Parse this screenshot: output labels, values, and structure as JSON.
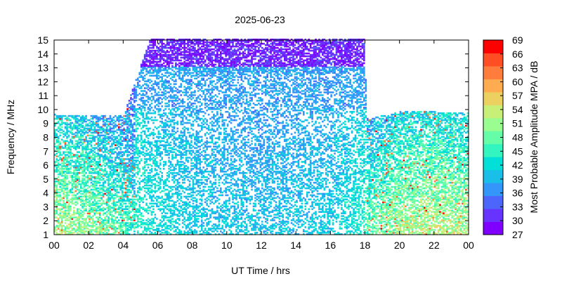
{
  "chart_data": {
    "type": "heatmap",
    "title": "2025-06-23",
    "xlabel": "UT Time / hrs",
    "ylabel": "Frequency / MHz",
    "colorbar_label": "Most Probable Amplitude MPA / dB",
    "xlim": [
      0,
      24
    ],
    "ylim": [
      1,
      15
    ],
    "x_ticks": [
      "00",
      "02",
      "04",
      "06",
      "08",
      "10",
      "12",
      "14",
      "16",
      "18",
      "20",
      "22",
      "00"
    ],
    "y_ticks": [
      "1",
      "2",
      "3",
      "4",
      "5",
      "6",
      "7",
      "8",
      "9",
      "10",
      "11",
      "12",
      "13",
      "14",
      "15"
    ],
    "colorbar_range": [
      27,
      69
    ],
    "colorbar_ticks": [
      "27",
      "30",
      "33",
      "36",
      "39",
      "42",
      "45",
      "48",
      "51",
      "54",
      "57",
      "60",
      "63",
      "66",
      "69"
    ],
    "colormap": [
      "#7f00ff",
      "#6633ff",
      "#4c66fc",
      "#3396f8",
      "#19bfe8",
      "#00e0d8",
      "#33f5c0",
      "#66fda8",
      "#99fd90",
      "#c8f078",
      "#ecd160",
      "#ffab50",
      "#ff7c3c",
      "#ff4d24",
      "#ff0000"
    ],
    "profile": [
      {
        "t": 0.0,
        "fmax": 9.6,
        "mpa_low_freq": 52
      },
      {
        "t": 2.0,
        "fmax": 9.5,
        "mpa_low_freq": 50
      },
      {
        "t": 4.0,
        "fmax": 9.6,
        "mpa_low_freq": 47
      },
      {
        "t": 5.5,
        "fmax": 15.0,
        "mpa_low_freq": 43
      },
      {
        "t": 8.0,
        "fmax": 15.0,
        "mpa_low_freq": 41
      },
      {
        "t": 12.0,
        "fmax": 15.0,
        "mpa_low_freq": 40
      },
      {
        "t": 16.0,
        "fmax": 15.0,
        "mpa_low_freq": 41
      },
      {
        "t": 17.9,
        "fmax": 15.0,
        "mpa_low_freq": 44
      },
      {
        "t": 18.1,
        "fmax": 9.3,
        "mpa_low_freq": 48
      },
      {
        "t": 20.0,
        "fmax": 9.8,
        "mpa_low_freq": 52
      },
      {
        "t": 22.0,
        "fmax": 9.8,
        "mpa_low_freq": 53
      },
      {
        "t": 24.0,
        "fmax": 9.7,
        "mpa_low_freq": 52
      }
    ]
  }
}
